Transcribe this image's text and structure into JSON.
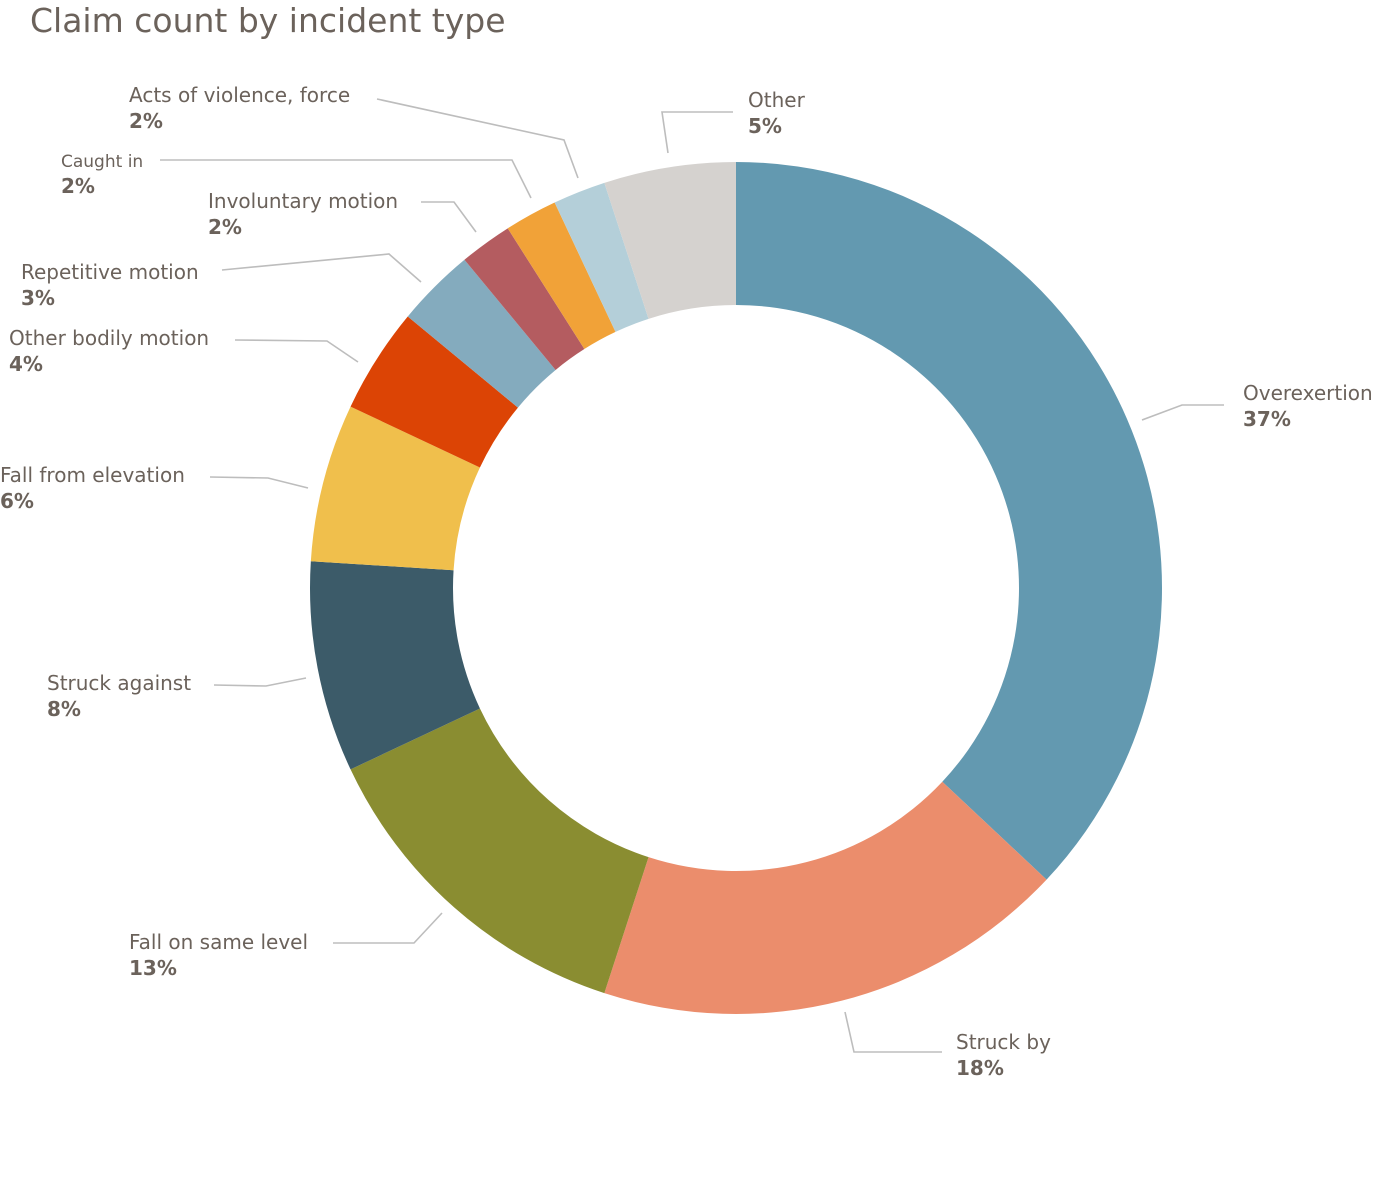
{
  "chart_data": {
    "type": "pie",
    "title": "Claim count by incident type",
    "donut": true,
    "categories": [
      "Overexertion",
      "Struck by",
      "Fall on same level",
      "Struck against",
      "Fall from elevation",
      "Other bodily motion",
      "Repetitive motion",
      "Involuntary motion",
      "Caught in",
      "Acts of violence, force",
      "Other"
    ],
    "values": [
      37,
      18,
      13,
      8,
      6,
      4,
      3,
      2,
      2,
      2,
      5
    ],
    "value_labels": [
      "37%",
      "18%",
      "13%",
      "8%",
      "6%",
      "4%",
      "3%",
      "2%",
      "2%",
      "2%",
      "5%"
    ],
    "colors": [
      "#6399b0",
      "#eb8d6c",
      "#8a8d31",
      "#3c5b69",
      "#f0bf4c",
      "#dc4405",
      "#84abbe",
      "#b45c60",
      "#f1a238",
      "#b4cfd9",
      "#d5d2cf"
    ],
    "legend": "none"
  }
}
